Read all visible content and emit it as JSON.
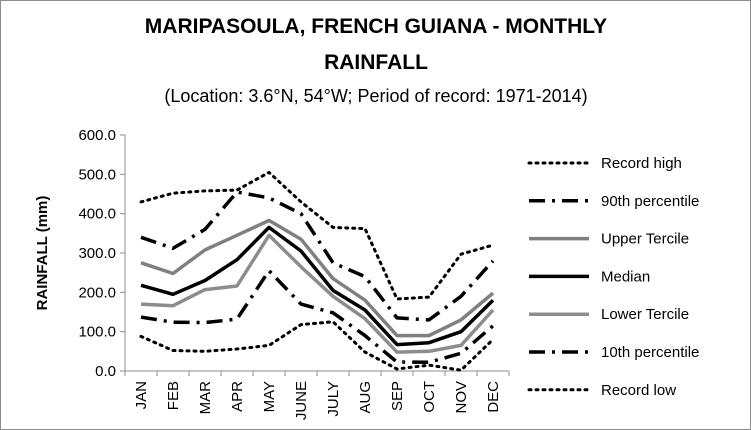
{
  "chart_data": {
    "type": "line",
    "title_line1": "MARIPASOULA, FRENCH GUIANA - MONTHLY",
    "title_line2": "RAINFALL",
    "subtitle": "(Location: 3.6°N, 54°W; Period of record: 1971-2014)",
    "ylabel": "RAINFALL (mm)",
    "xlabel": "",
    "ylim": [
      0,
      600
    ],
    "yticks": [
      "0.0",
      "100.0",
      "200.0",
      "300.0",
      "400.0",
      "500.0",
      "600.0"
    ],
    "categories": [
      "JAN",
      "FEB",
      "MAR",
      "APR",
      "MAY",
      "JUNE",
      "JULY",
      "AUG",
      "SEP",
      "OCT",
      "NOV",
      "DEC"
    ],
    "grid": false,
    "legend_position": "right",
    "series": [
      {
        "name": "Record high",
        "values": [
          430,
          452,
          458,
          460,
          505,
          430,
          365,
          362,
          183,
          188,
          297,
          320
        ],
        "color": "#000000",
        "style": "dotted",
        "width": 3
      },
      {
        "name": "90th percentile",
        "values": [
          340,
          312,
          360,
          455,
          440,
          400,
          275,
          240,
          135,
          130,
          190,
          280
        ],
        "color": "#000000",
        "style": "dashdot",
        "width": 3.5
      },
      {
        "name": "Upper Tercile",
        "values": [
          275,
          248,
          308,
          345,
          383,
          335,
          235,
          180,
          90,
          90,
          130,
          198
        ],
        "color": "#808080",
        "style": "solid",
        "width": 3.5
      },
      {
        "name": "Median",
        "values": [
          218,
          195,
          230,
          283,
          365,
          305,
          205,
          155,
          67,
          72,
          100,
          180
        ],
        "color": "#000000",
        "style": "solid",
        "width": 3.5
      },
      {
        "name": "Lower Tercile",
        "values": [
          170,
          166,
          207,
          216,
          345,
          265,
          190,
          133,
          48,
          50,
          65,
          155
        ],
        "color": "#8c8c8c",
        "style": "solid",
        "width": 3.5
      },
      {
        "name": "10th percentile",
        "values": [
          137,
          124,
          123,
          132,
          255,
          170,
          148,
          90,
          23,
          22,
          45,
          115
        ],
        "color": "#000000",
        "style": "dashdot",
        "width": 3.5
      },
      {
        "name": "Record low",
        "values": [
          88,
          52,
          50,
          56,
          65,
          118,
          125,
          48,
          5,
          15,
          2,
          80
        ],
        "color": "#000000",
        "style": "dotted",
        "width": 3
      }
    ]
  }
}
